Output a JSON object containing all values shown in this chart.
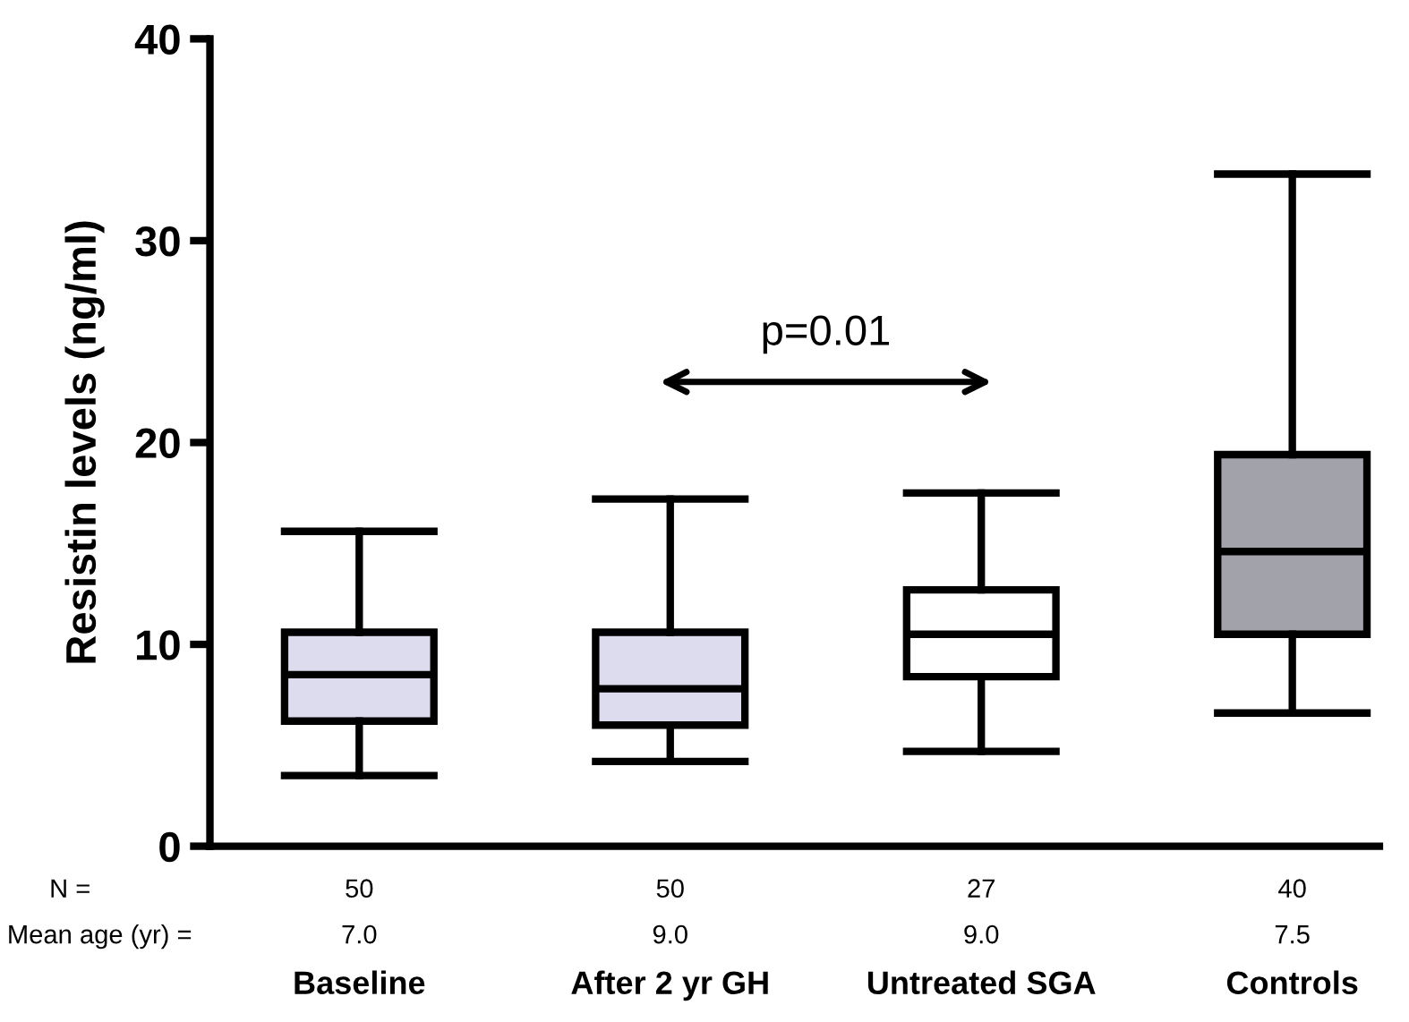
{
  "chart_data": {
    "type": "box",
    "ylabel": "Resistin levels (ng/ml)",
    "categories": [
      "Baseline",
      "After 2 yr GH",
      "Untreated SGA",
      "Controls"
    ],
    "colors": [
      "#dcdcee",
      "#dcdcee",
      "#ffffff",
      "#a2a2aa"
    ],
    "boxes": [
      {
        "low": 3.5,
        "q1": 6.2,
        "median": 8.5,
        "q3": 10.6,
        "high": 15.6
      },
      {
        "low": 4.2,
        "q1": 6.0,
        "median": 7.8,
        "q3": 10.6,
        "high": 17.2
      },
      {
        "low": 4.7,
        "q1": 8.4,
        "median": 10.5,
        "q3": 12.7,
        "high": 17.5
      },
      {
        "low": 6.6,
        "q1": 10.5,
        "median": 14.6,
        "q3": 19.4,
        "high": 33.3
      }
    ],
    "ylim": [
      0,
      40
    ],
    "yticks": [
      0,
      10,
      20,
      30,
      40
    ],
    "grid": false,
    "legend": false,
    "annotations": [
      "p=0.01",
      "N =",
      "50",
      "50",
      "27",
      "40",
      "Mean age (yr) =",
      "7.0",
      "9.0",
      "9.0",
      "7.5"
    ]
  }
}
